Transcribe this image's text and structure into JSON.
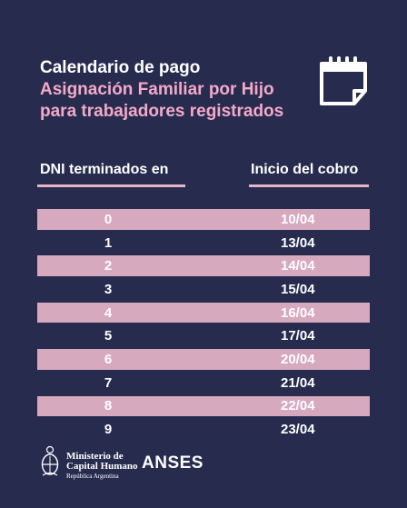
{
  "title": {
    "line1": "Calendario de pago",
    "line2": "Asignación Familiar por Hijo",
    "line3": "para trabajadores registrados"
  },
  "table": {
    "header_dni": "DNI terminados en",
    "header_date": "Inicio del cobro",
    "rows": [
      {
        "dni": "0",
        "date": "10/04"
      },
      {
        "dni": "1",
        "date": "13/04"
      },
      {
        "dni": "2",
        "date": "14/04"
      },
      {
        "dni": "3",
        "date": "15/04"
      },
      {
        "dni": "4",
        "date": "16/04"
      },
      {
        "dni": "5",
        "date": "17/04"
      },
      {
        "dni": "6",
        "date": "20/04"
      },
      {
        "dni": "7",
        "date": "21/04"
      },
      {
        "dni": "8",
        "date": "22/04"
      },
      {
        "dni": "9",
        "date": "23/04"
      }
    ]
  },
  "footer": {
    "ministry_line1": "Ministerio de",
    "ministry_line2": "Capital Humano",
    "ministry_line3": "República Argentina",
    "anses": "ANSES"
  },
  "colors": {
    "background": "#272c4f",
    "accent_pink": "#f4a9c8",
    "row_shade": "#d7a9bf"
  },
  "icons": [
    "calendar-icon",
    "seal-icon"
  ]
}
